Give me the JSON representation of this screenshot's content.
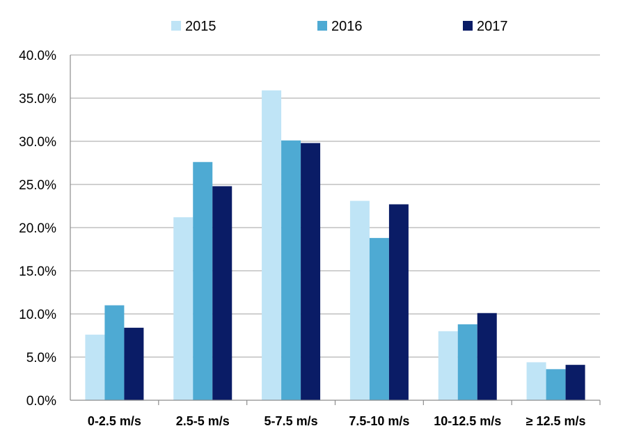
{
  "chart_data": {
    "type": "bar",
    "title": "",
    "xlabel": "",
    "ylabel": "",
    "categories": [
      "0-2.5 m/s",
      "2.5-5 m/s",
      "5-7.5 m/s",
      "7.5-10 m/s",
      "10-12.5 m/s",
      "≥ 12.5 m/s"
    ],
    "series": [
      {
        "name": "2015",
        "color": "#bfe4f6",
        "values": [
          7.6,
          21.2,
          35.9,
          23.1,
          8.0,
          4.4
        ]
      },
      {
        "name": "2016",
        "color": "#4eaad3",
        "values": [
          11.0,
          27.6,
          30.1,
          18.8,
          8.8,
          3.6
        ]
      },
      {
        "name": "2017",
        "color": "#0a1c66",
        "values": [
          8.4,
          24.8,
          29.8,
          22.7,
          10.1,
          4.1
        ]
      }
    ],
    "ylim": [
      0,
      40
    ],
    "yticks": [
      "0.0%",
      "5.0%",
      "10.0%",
      "15.0%",
      "20.0%",
      "25.0%",
      "30.0%",
      "35.0%",
      "40.0%"
    ],
    "grid": true,
    "legend_position": "top-center"
  }
}
